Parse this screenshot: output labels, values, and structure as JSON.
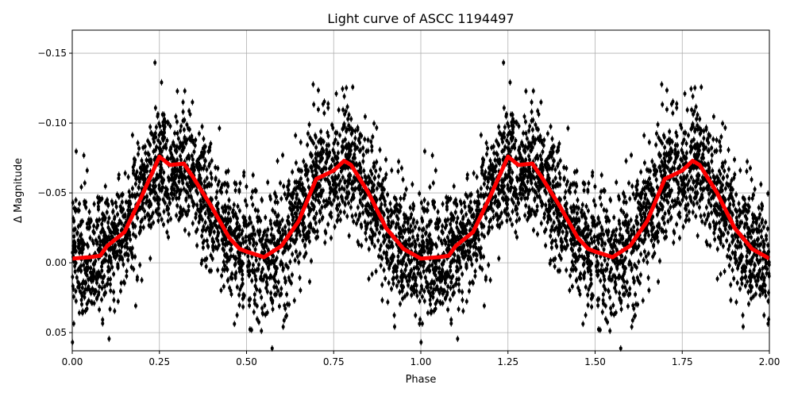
{
  "chart_data": {
    "type": "scatter",
    "title": "Light curve of ASCC 1194497",
    "xlabel": "Phase",
    "ylabel": "Δ Magnitude",
    "xlim": [
      0,
      2
    ],
    "ylim": [
      0.063,
      -0.1665
    ],
    "y_inverted": true,
    "grid": true,
    "x_ticks": [
      0,
      0.25,
      0.5,
      0.75,
      1.0,
      1.25,
      1.5,
      1.75,
      2.0
    ],
    "x_tick_labels": [
      "0.00",
      "0.25",
      "0.50",
      "0.75",
      "1.00",
      "1.25",
      "1.50",
      "1.75",
      "2.00"
    ],
    "y_ticks": [
      -0.15,
      -0.1,
      -0.05,
      0.0,
      0.05
    ],
    "y_tick_labels": [
      "−0.15",
      "−0.10",
      "−0.05",
      "0.00",
      "0.05"
    ],
    "colors": {
      "points": "#000000",
      "trend": "#ff0000",
      "grid": "#b0b0b0"
    },
    "series": [
      {
        "kind": "scatter_with_errorbars",
        "description_visible": "individual measurements, black, phase 0–2 (phase-folded, repeated)"
      },
      {
        "kind": "line",
        "phase": [
          0.0,
          0.05,
          0.08,
          0.1,
          0.15,
          0.2,
          0.25,
          0.28,
          0.32,
          0.35,
          0.4,
          0.45,
          0.48,
          0.5,
          0.55,
          0.6,
          0.65,
          0.7,
          0.75,
          0.78,
          0.8,
          0.85,
          0.9,
          0.95,
          1.0
        ],
        "values": [
          -0.003,
          -0.004,
          -0.005,
          -0.012,
          -0.022,
          -0.048,
          -0.076,
          -0.07,
          -0.071,
          -0.06,
          -0.04,
          -0.018,
          -0.01,
          -0.008,
          -0.004,
          -0.012,
          -0.03,
          -0.06,
          -0.066,
          -0.073,
          -0.07,
          -0.05,
          -0.025,
          -0.01,
          -0.003
        ]
      }
    ]
  }
}
